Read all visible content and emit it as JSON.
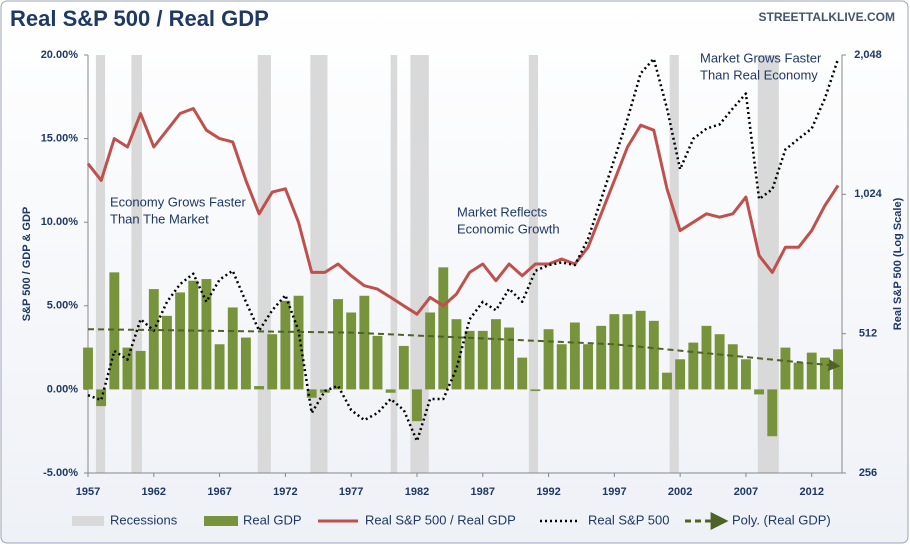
{
  "chart_data": {
    "type": "combo",
    "title": "Real S&P 500 / Real  GDP",
    "watermark": "STREETTALKLIVE.COM",
    "ylabel": "S&P 500 / GDP & GDP",
    "y2label": "Real S&P 500 (Log Scale)",
    "recessions_label": "Recessions",
    "recessions": [
      [
        1957.6,
        1958.3
      ],
      [
        1960.3,
        1961.1
      ],
      [
        1969.9,
        1970.9
      ],
      [
        1973.9,
        1975.2
      ],
      [
        1980.0,
        1980.5
      ],
      [
        1981.5,
        1982.9
      ],
      [
        1990.5,
        1991.2
      ],
      [
        2001.2,
        2001.9
      ],
      [
        2007.9,
        2009.5
      ]
    ],
    "recession_color": "#d9d9d9",
    "annotations": [
      [
        "Economy Grows Faster",
        "Than The Market"
      ],
      [
        "Market Reflects",
        "Economic Growth"
      ],
      [
        "Market Grows Faster",
        "Than Real Economy"
      ]
    ],
    "x": [
      1957,
      1958,
      1959,
      1960,
      1961,
      1962,
      1963,
      1964,
      1965,
      1966,
      1967,
      1968,
      1969,
      1970,
      1971,
      1972,
      1973,
      1974,
      1975,
      1976,
      1977,
      1978,
      1979,
      1980,
      1981,
      1982,
      1983,
      1984,
      1985,
      1986,
      1987,
      1988,
      1989,
      1990,
      1991,
      1992,
      1993,
      1994,
      1995,
      1996,
      1997,
      1998,
      1999,
      2000,
      2001,
      2002,
      2003,
      2004,
      2005,
      2006,
      2007,
      2008,
      2009,
      2010,
      2011,
      2012,
      2013,
      2014
    ],
    "xlim": [
      1957,
      2014.3
    ],
    "xticks": [
      1957,
      1962,
      1967,
      1972,
      1977,
      1982,
      1987,
      1992,
      1997,
      2002,
      2007,
      2012
    ],
    "ylim": [
      -5,
      20
    ],
    "yticks": [
      {
        "value": -5,
        "label": "-5.00%"
      },
      {
        "value": 0,
        "label": "0.00%"
      },
      {
        "value": 5,
        "label": "5.00%"
      },
      {
        "value": 10,
        "label": "10.00%"
      },
      {
        "value": 15,
        "label": "15.00%"
      },
      {
        "value": 20,
        "label": "20.00%"
      }
    ],
    "y2lim": [
      256,
      2048
    ],
    "y2ticks": [
      256,
      512,
      {
        "value": 1024,
        "label": "1,024"
      },
      {
        "value": 2048,
        "label": "2,048"
      }
    ],
    "y2log": true,
    "series": [
      {
        "name": "Real GDP",
        "type": "bar",
        "color": "#77933c",
        "values": [
          2.5,
          -1.0,
          7.0,
          2.5,
          2.3,
          6.0,
          4.4,
          5.8,
          6.5,
          6.6,
          2.7,
          4.9,
          3.1,
          0.2,
          3.3,
          5.3,
          5.6,
          -0.5,
          -0.2,
          5.4,
          4.6,
          5.6,
          3.2,
          -0.2,
          2.6,
          -1.9,
          4.6,
          7.3,
          4.2,
          3.5,
          3.5,
          4.2,
          3.7,
          1.9,
          -0.1,
          3.6,
          2.7,
          4.0,
          2.7,
          3.8,
          4.5,
          4.5,
          4.7,
          4.1,
          1.0,
          1.8,
          2.8,
          3.8,
          3.3,
          2.7,
          1.8,
          -0.3,
          -2.8,
          2.5,
          1.6,
          2.2,
          1.9,
          2.4
        ]
      },
      {
        "name": "Real S&P 500 / Real GDP",
        "type": "line",
        "color": "#c0504d",
        "values": [
          13.5,
          12.5,
          15,
          14.5,
          16.5,
          14.5,
          15.5,
          16.5,
          16.8,
          15.5,
          15,
          14.8,
          12.5,
          10.5,
          11.8,
          12,
          10,
          7,
          7,
          7.5,
          6.8,
          6.2,
          6,
          5.5,
          5,
          4.5,
          5.5,
          5,
          5.7,
          7,
          7.5,
          6.5,
          7.5,
          6.8,
          7.5,
          7.5,
          7.8,
          7.5,
          8.5,
          10.5,
          12.5,
          14.5,
          15.8,
          15.5,
          12,
          9.5,
          10,
          10.5,
          10.3,
          10.5,
          11.5,
          8,
          7,
          8.5,
          8.5,
          9.5,
          11,
          12.2
        ]
      },
      {
        "name": "Real S&P 500",
        "type": "line",
        "axis": "y2",
        "color": "#000000",
        "dash": "dotted",
        "values": [
          377,
          368,
          470,
          450,
          550,
          520,
          600,
          655,
          690,
          600,
          670,
          700,
          600,
          520,
          575,
          620,
          520,
          345,
          385,
          395,
          350,
          333,
          345,
          370,
          350,
          300,
          370,
          370,
          430,
          550,
          600,
          575,
          640,
          600,
          700,
          720,
          730,
          720,
          820,
          1000,
          1220,
          1490,
          1870,
          2010,
          1570,
          1160,
          1350,
          1420,
          1450,
          1570,
          1690,
          1000,
          1050,
          1280,
          1350,
          1420,
          1650,
          2010
        ]
      },
      {
        "name": "Poly. (Real GDP)",
        "type": "line",
        "color": "#4f6228",
        "dash": "dashed",
        "x": [
          1957,
          1977,
          1997,
          2014
        ],
        "values": [
          3.6,
          3.4,
          2.7,
          1.4
        ]
      }
    ]
  }
}
